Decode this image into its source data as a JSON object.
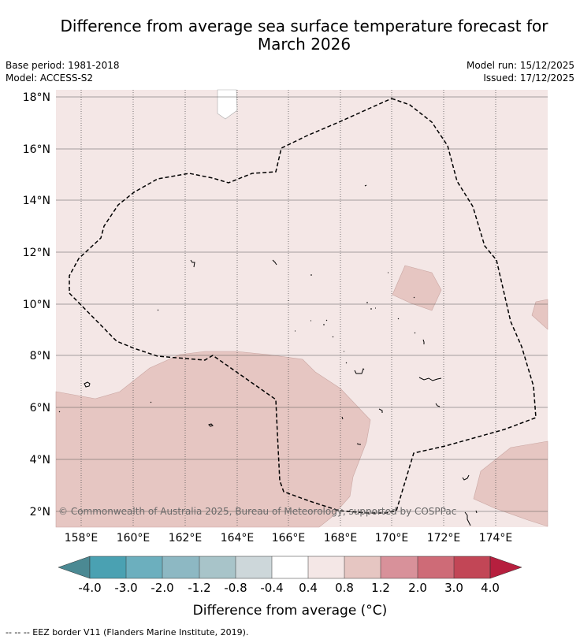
{
  "title_line1": "Difference from average sea surface temperature forecast for",
  "title_line2": "March 2026",
  "meta": {
    "base_period": "Base period: 1981-2018",
    "model": "Model: ACCESS-S2",
    "model_run": "Model run: 15/12/2025",
    "issued": "Issued: 17/12/2025"
  },
  "map": {
    "lon_ticks": [
      "158°E",
      "160°E",
      "162°E",
      "164°E",
      "166°E",
      "168°E",
      "170°E",
      "172°E",
      "174°E"
    ],
    "lat_ticks": [
      "18°N",
      "16°N",
      "14°N",
      "12°N",
      "10°N",
      "8°N",
      "6°N",
      "4°N",
      "2°N"
    ],
    "copyright": "© Commonwealth of Australia 2025, Bureau of Meteorology, supported by COSPPac",
    "colors": {
      "band_0_4_to_0_8": "#f4e7e6",
      "band_0_8_to_1_2": "#e6c6c2",
      "band_neg0_4_to_0_4": "#ffffff"
    }
  },
  "colorbar": {
    "labels": [
      "-4.0",
      "-3.0",
      "-2.0",
      "-1.2",
      "-0.8",
      "-0.4",
      "0.4",
      "0.8",
      "1.2",
      "2.0",
      "3.0",
      "4.0"
    ],
    "colors": [
      "#4b8993",
      "#4aa1b2",
      "#6cafbe",
      "#8db8c3",
      "#a8c4c9",
      "#cdd7da",
      "#ffffff",
      "#f4e7e6",
      "#e6c6c2",
      "#d8919a",
      "#ce6b77",
      "#c24656",
      "#b61f3e"
    ],
    "title": "Difference from average (°C)"
  },
  "eez_note": "-- -- -- EEZ border V11 (Flanders Marine Institute, 2019)."
}
